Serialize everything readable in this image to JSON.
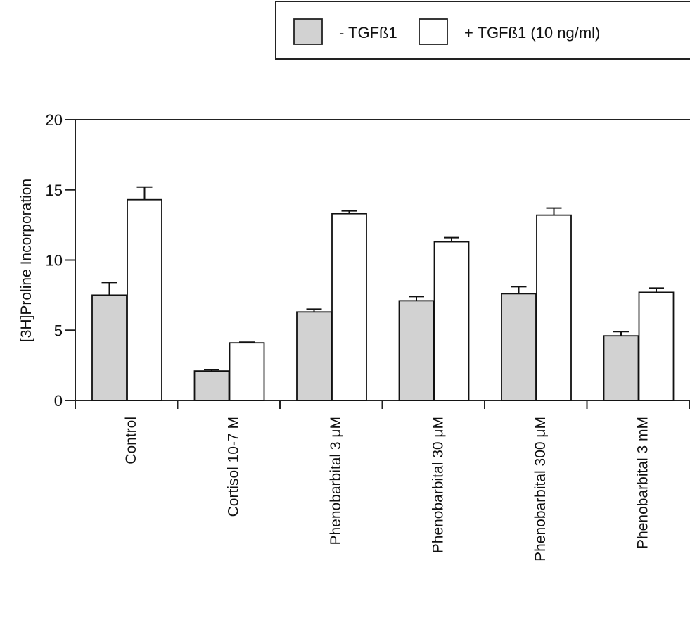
{
  "chart_data": {
    "type": "bar",
    "title": "",
    "xlabel": "",
    "ylabel": "[3H]Proline Incorporation",
    "ylim": [
      0,
      20
    ],
    "yticks": [
      "0",
      "5",
      "10",
      "15",
      "20"
    ],
    "categories": [
      "Control",
      "Cortisol 10-7 M",
      "Phenobarbital 3 μM",
      "Phenobarbital 30 μM",
      "Phenobarbital 300 μM",
      "Phenobarbital 3 mM"
    ],
    "series": [
      {
        "name": "- TGFß1",
        "values": [
          7.5,
          2.1,
          6.3,
          7.1,
          7.6,
          4.6
        ],
        "errors": [
          0.9,
          0.1,
          0.2,
          0.3,
          0.5,
          0.3
        ],
        "color": "#d2d2d2"
      },
      {
        "name": "+ TGFß1 (10 ng/ml)",
        "values": [
          14.3,
          4.1,
          13.3,
          11.3,
          13.2,
          7.7
        ],
        "errors": [
          0.9,
          0.05,
          0.2,
          0.3,
          0.5,
          0.3
        ],
        "color": "#ffffff"
      }
    ],
    "grid": false,
    "legend": "top-right",
    "colors": {
      "axis": "#222222",
      "bar_stroke": "#111111"
    }
  }
}
